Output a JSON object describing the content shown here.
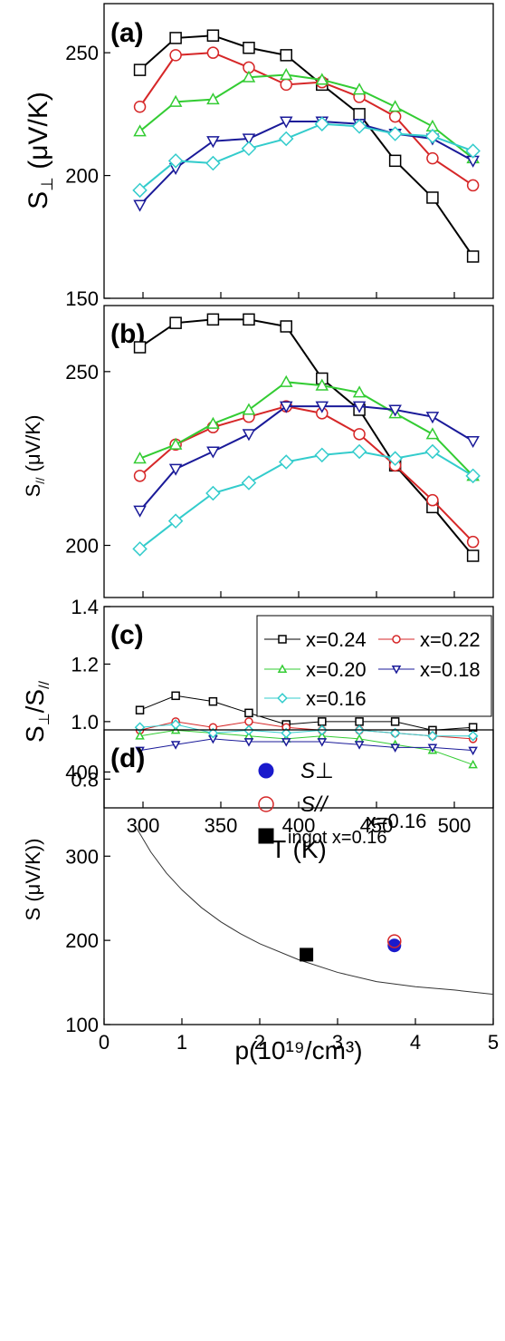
{
  "chart_data": [
    {
      "panel": "(a)",
      "type": "line",
      "ylabel": "S⊥ (μV/K)",
      "ylim": [
        150,
        270
      ],
      "yticks": [
        150,
        200,
        250
      ],
      "xlim": [
        275,
        525
      ],
      "x": [
        298,
        321,
        345,
        368,
        392,
        415,
        439,
        462,
        486,
        512
      ],
      "series": [
        {
          "name": "x=0.24",
          "color": "#000000",
          "marker": "square",
          "values": [
            243,
            256,
            257,
            252,
            249,
            237,
            225,
            206,
            191,
            167
          ]
        },
        {
          "name": "x=0.22",
          "color": "#d62728",
          "marker": "circle",
          "values": [
            228,
            249,
            250,
            244,
            237,
            238,
            232,
            224,
            207,
            196
          ]
        },
        {
          "name": "x=0.20",
          "color": "#33cc33",
          "marker": "triangle",
          "values": [
            218,
            230,
            231,
            240,
            241,
            239,
            235,
            228,
            220,
            207
          ]
        },
        {
          "name": "x=0.18",
          "color": "#1a1a99",
          "marker": "tri-down",
          "values": [
            188,
            203,
            214,
            215,
            222,
            222,
            221,
            217,
            215,
            206
          ]
        },
        {
          "name": "x=0.16",
          "color": "#33cccc",
          "marker": "diamond",
          "values": [
            194,
            206,
            205,
            211,
            215,
            221,
            220,
            217,
            216,
            210
          ]
        }
      ]
    },
    {
      "panel": "(b)",
      "type": "line",
      "ylabel": "S// (μV/K)",
      "ylim": [
        185,
        269
      ],
      "yticks": [
        200,
        250
      ],
      "xlim": [
        275,
        525
      ],
      "x": [
        298,
        321,
        345,
        368,
        392,
        415,
        439,
        462,
        486,
        512
      ],
      "series": [
        {
          "name": "x=0.24",
          "color": "#000000",
          "marker": "square",
          "values": [
            257,
            264,
            265,
            265,
            263,
            248,
            239,
            223,
            211,
            197
          ]
        },
        {
          "name": "x=0.22",
          "color": "#d62728",
          "marker": "circle",
          "values": [
            220,
            229,
            234,
            237,
            240,
            238,
            232,
            223,
            213,
            201
          ]
        },
        {
          "name": "x=0.20",
          "color": "#33cc33",
          "marker": "triangle",
          "values": [
            225,
            229,
            235,
            239,
            247,
            246,
            244,
            238,
            232,
            220
          ]
        },
        {
          "name": "x=0.18",
          "color": "#1a1a99",
          "marker": "tri-down",
          "values": [
            210,
            222,
            227,
            232,
            240,
            240,
            240,
            239,
            237,
            230
          ]
        },
        {
          "name": "x=0.16",
          "color": "#33cccc",
          "marker": "diamond",
          "values": [
            199,
            207,
            215,
            218,
            224,
            226,
            227,
            225,
            227,
            220
          ]
        }
      ]
    },
    {
      "panel": "(c)",
      "type": "line",
      "ylabel": "S⊥/S//",
      "xlabel": "T (K)",
      "ylim": [
        0.7,
        1.4
      ],
      "yticks": [
        0.8,
        1.0,
        1.2,
        1.4
      ],
      "xlim": [
        275,
        525
      ],
      "xticks": [
        300,
        350,
        400,
        450,
        500
      ],
      "legend": "top-right",
      "x": [
        298,
        321,
        345,
        368,
        392,
        415,
        439,
        462,
        486,
        512
      ],
      "series": [
        {
          "name": "x=0.24",
          "color": "#000000",
          "marker": "square",
          "values": [
            1.04,
            1.09,
            1.07,
            1.03,
            0.99,
            1.0,
            1.0,
            1.0,
            0.97,
            0.98
          ]
        },
        {
          "name": "x=0.22",
          "color": "#d62728",
          "marker": "circle",
          "values": [
            0.97,
            1.0,
            0.98,
            1.0,
            0.98,
            0.97,
            0.97,
            0.96,
            0.95,
            0.94
          ]
        },
        {
          "name": "x=0.20",
          "color": "#33cc33",
          "marker": "triangle",
          "values": [
            0.95,
            0.97,
            0.96,
            0.95,
            0.94,
            0.95,
            0.94,
            0.92,
            0.9,
            0.85
          ]
        },
        {
          "name": "x=0.18",
          "color": "#1a1a99",
          "marker": "tri-down",
          "values": [
            0.9,
            0.92,
            0.94,
            0.93,
            0.93,
            0.93,
            0.92,
            0.91,
            0.91,
            0.9
          ]
        },
        {
          "name": "x=0.16",
          "color": "#33cccc",
          "marker": "diamond",
          "values": [
            0.98,
            0.99,
            0.96,
            0.97,
            0.96,
            0.97,
            0.97,
            0.96,
            0.95,
            0.95
          ]
        }
      ]
    },
    {
      "panel": "(d)",
      "type": "scatter",
      "ylabel": "S (μV/K))",
      "xlabel": "p(10¹⁹/cm³)",
      "xlim": [
        0,
        5
      ],
      "ylim": [
        100,
        450
      ],
      "xticks": [
        0,
        1,
        2,
        3,
        4,
        5
      ],
      "yticks": [
        100,
        200,
        300,
        400
      ],
      "legend": "top-center",
      "annotation": "x=0.16",
      "curve": {
        "x": [
          0.42,
          0.6,
          0.8,
          1.0,
          1.25,
          1.5,
          1.75,
          2.0,
          2.5,
          3.0,
          3.5,
          4.0,
          4.5,
          5.0
        ],
        "y": [
          333,
          305,
          280,
          260,
          239,
          222,
          208,
          196,
          177,
          162,
          151,
          145,
          141,
          136
        ]
      },
      "series": [
        {
          "name": "S⊥",
          "color": "#1a1acc",
          "marker": "filled-circle",
          "x": [
            3.73
          ],
          "y": [
            194
          ]
        },
        {
          "name": "S//",
          "color": "#d62728",
          "marker": "open-circle",
          "x": [
            3.73
          ],
          "y": [
            199
          ]
        },
        {
          "name": "ingot x=0.16",
          "color": "#000000",
          "marker": "filled-square",
          "x": [
            2.6
          ],
          "y": [
            183
          ]
        }
      ]
    }
  ]
}
